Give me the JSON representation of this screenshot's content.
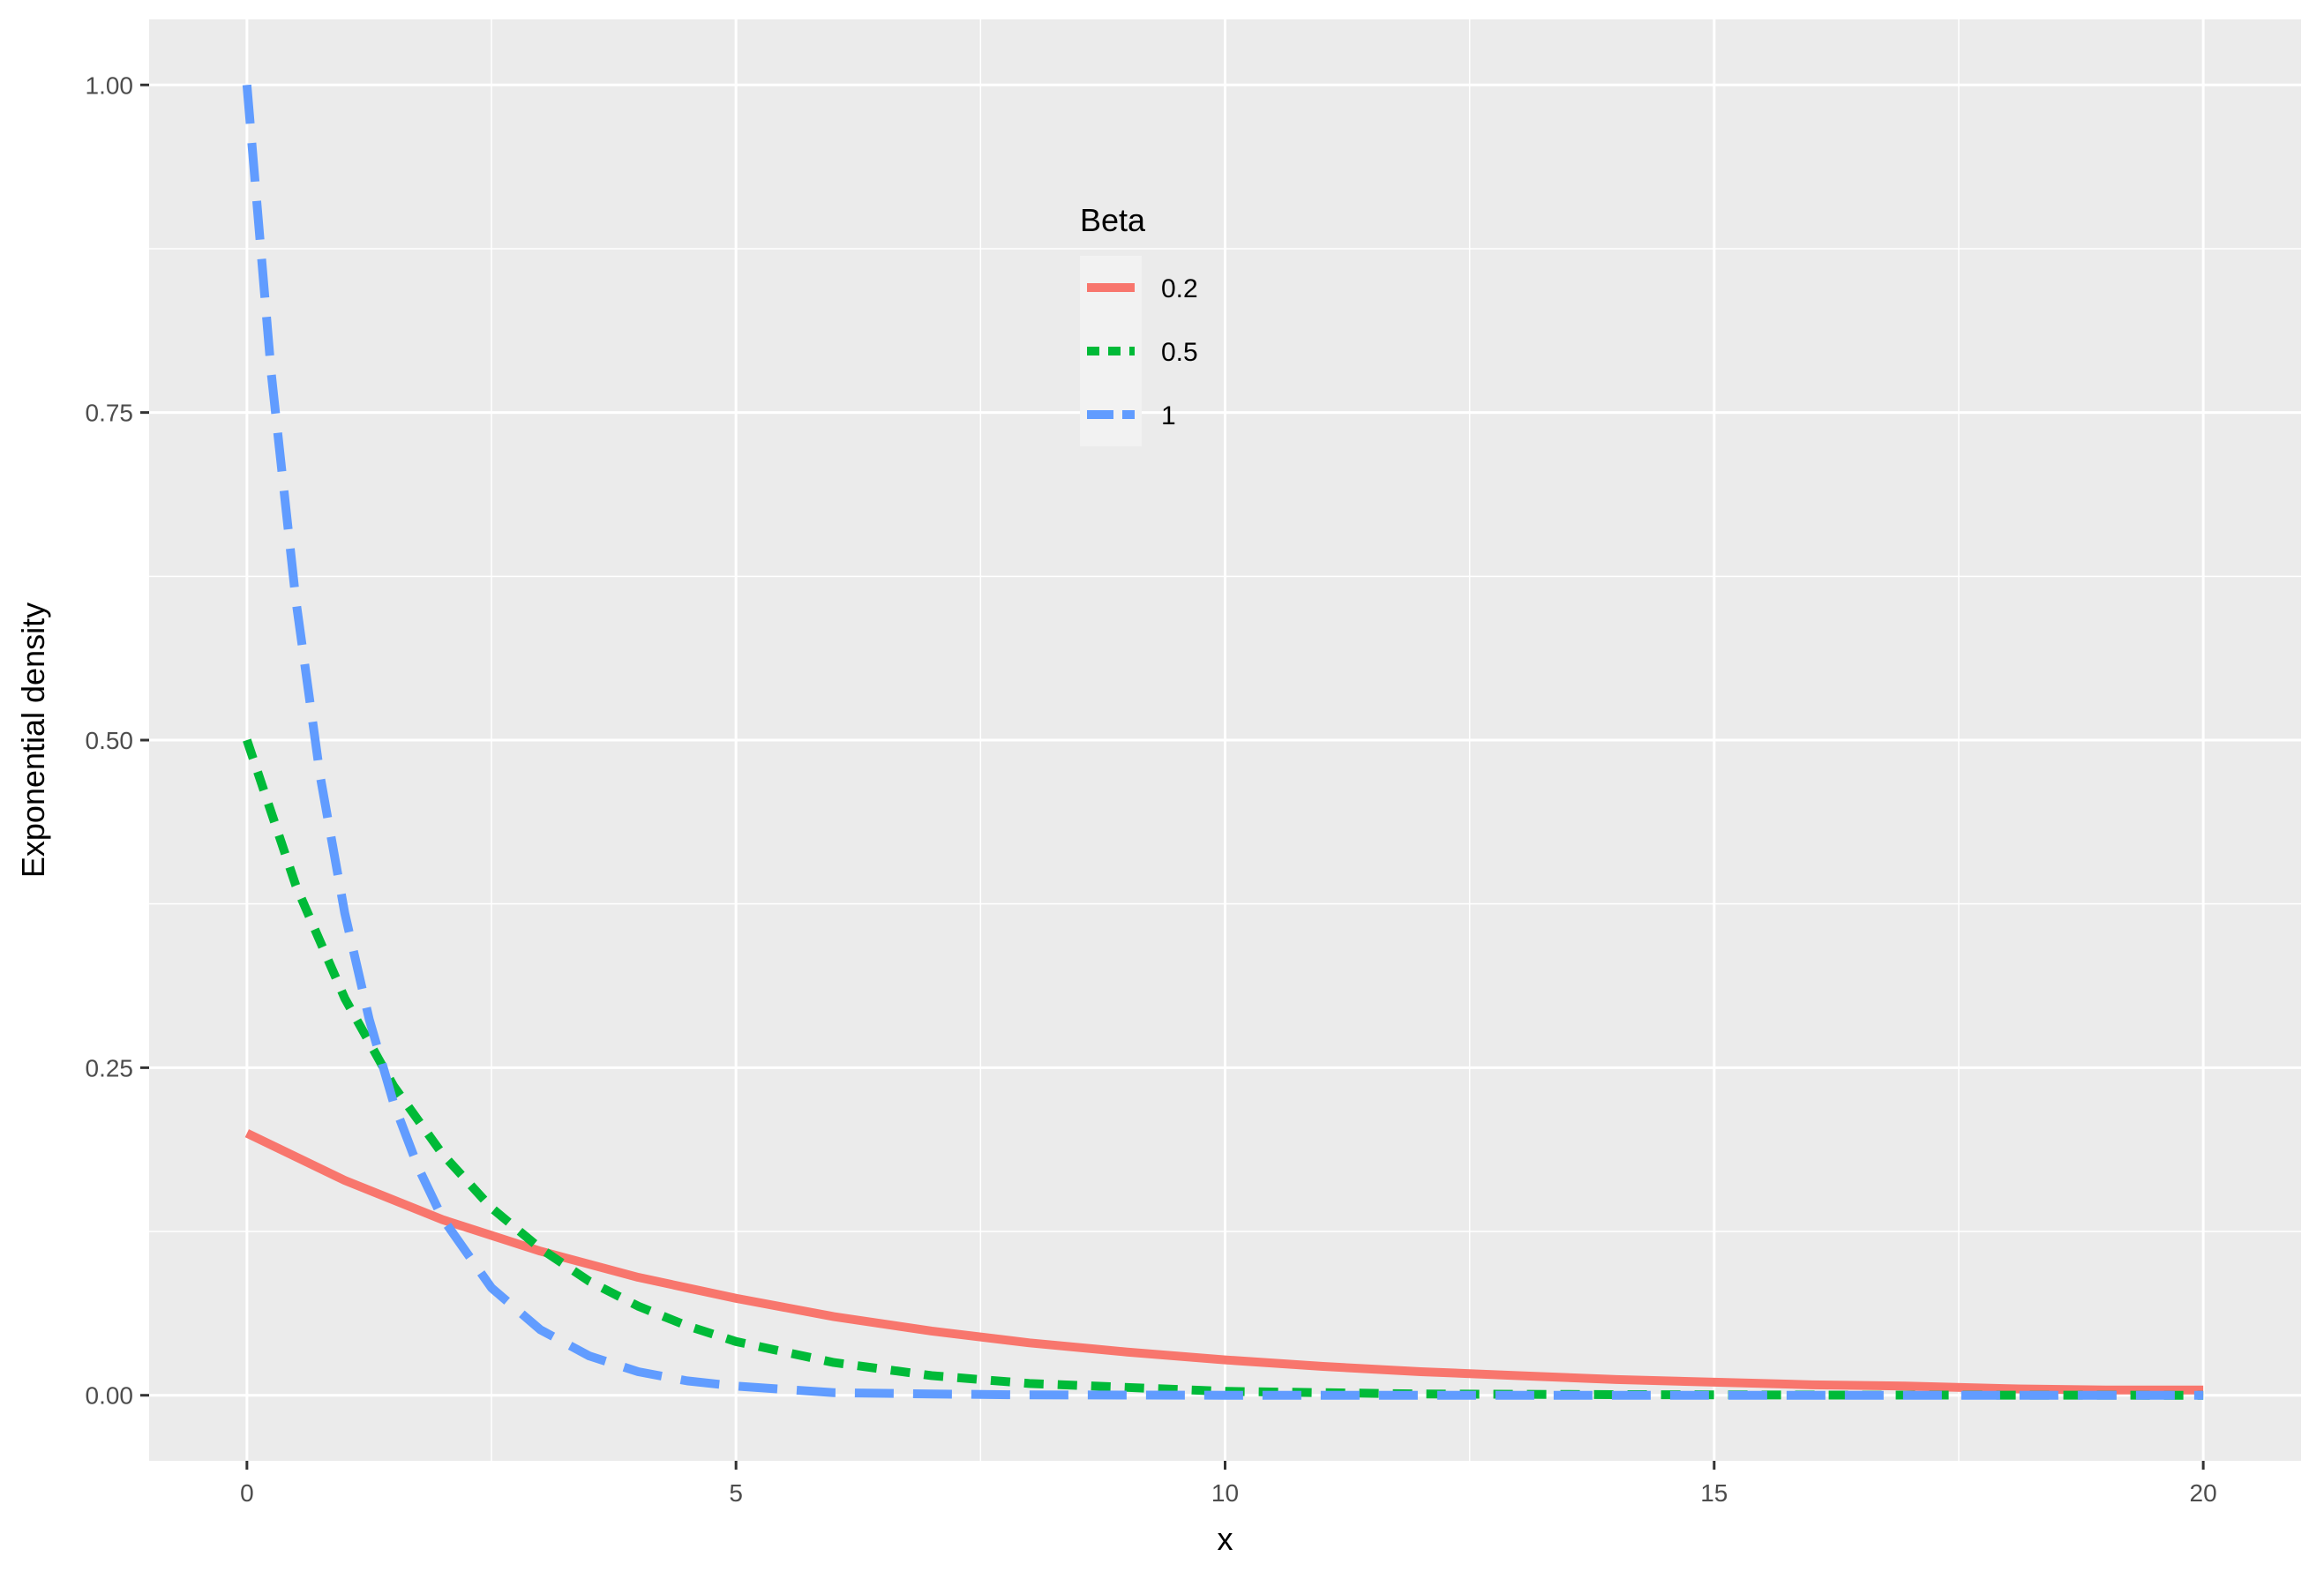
{
  "chart_data": {
    "type": "line",
    "xlabel": "x",
    "ylabel": "Exponential density",
    "xlim": [
      -1,
      21
    ],
    "ylim": [
      -0.05,
      1.05
    ],
    "x_ticks": [
      0,
      5,
      10,
      15,
      20
    ],
    "x_tick_labels": [
      "0",
      "5",
      "10",
      "15",
      "20"
    ],
    "y_ticks": [
      0,
      0.25,
      0.5,
      0.75,
      1
    ],
    "y_tick_labels": [
      "0.00",
      "0.25",
      "0.50",
      "0.75",
      "1.00"
    ],
    "grid": true,
    "legend": {
      "title": "Beta",
      "position": "inside-top-center",
      "entries": [
        "0.2",
        "0.5",
        "1"
      ]
    },
    "series": [
      {
        "name": "0.2",
        "color": "#F8766D",
        "linetype": "solid",
        "x": [
          0,
          1,
          2,
          3,
          4,
          5,
          6,
          7,
          8,
          9,
          10,
          11,
          12,
          13,
          14,
          15,
          16,
          17,
          18,
          19,
          20
        ],
        "y": [
          0.2,
          0.164,
          0.134,
          0.11,
          0.09,
          0.074,
          0.06,
          0.049,
          0.04,
          0.033,
          0.027,
          0.022,
          0.018,
          0.015,
          0.012,
          0.01,
          0.008,
          0.007,
          0.005,
          0.004,
          0.004
        ]
      },
      {
        "name": "0.5",
        "color": "#00BA38",
        "linetype": "dotted",
        "x": [
          0,
          0.5,
          1,
          1.5,
          2,
          2.5,
          3,
          3.5,
          4,
          4.5,
          5,
          6,
          7,
          8,
          9,
          10,
          12,
          14,
          16,
          18,
          20
        ],
        "y": [
          0.5,
          0.389,
          0.303,
          0.236,
          0.184,
          0.143,
          0.112,
          0.087,
          0.068,
          0.053,
          0.041,
          0.025,
          0.015,
          0.009,
          0.006,
          0.003,
          0.001,
          0.0005,
          0.0002,
          0.0001,
          0.0
        ]
      },
      {
        "name": "1",
        "color": "#619CFF",
        "linetype": "dashed",
        "x": [
          0,
          0.25,
          0.5,
          0.75,
          1,
          1.25,
          1.5,
          1.75,
          2,
          2.5,
          3,
          3.5,
          4,
          4.5,
          5,
          6,
          7,
          8,
          10,
          12,
          15,
          20
        ],
        "y": [
          1.0,
          0.779,
          0.607,
          0.472,
          0.368,
          0.287,
          0.223,
          0.174,
          0.135,
          0.082,
          0.05,
          0.03,
          0.018,
          0.011,
          0.007,
          0.002,
          0.001,
          0.0003,
          0.0,
          0.0,
          0.0,
          0.0
        ]
      }
    ]
  }
}
